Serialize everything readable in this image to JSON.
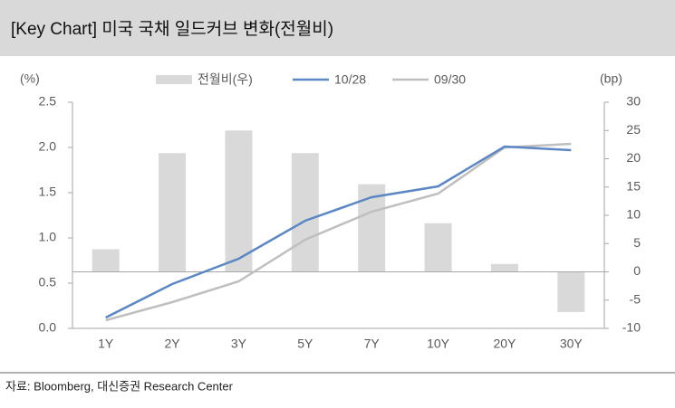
{
  "chart_data": {
    "type": "combo",
    "title": "[Key Chart] 미국 국채 일드커브 변화(전월비)",
    "y_label": "(%)",
    "y2_label": "(bp)",
    "source": "자료: Bloomberg, 대신증권 Research Center",
    "categories": [
      "1Y",
      "2Y",
      "3Y",
      "5Y",
      "7Y",
      "10Y",
      "20Y",
      "30Y"
    ],
    "series": [
      {
        "name": "전월비(우)",
        "type": "bar",
        "axis": "y2",
        "color": "#d9d9d9",
        "values": [
          4,
          21,
          25,
          21,
          15.5,
          8.6,
          1.4,
          -7.1
        ]
      },
      {
        "name": "10/28",
        "type": "line",
        "color": "#5b87c5",
        "values": [
          0.12,
          0.49,
          0.77,
          1.19,
          1.45,
          1.57,
          2.01,
          1.97
        ]
      },
      {
        "name": "09/30",
        "type": "line",
        "color": "#bfbfbf",
        "values": [
          0.09,
          0.29,
          0.52,
          0.98,
          1.29,
          1.49,
          2.0,
          2.04
        ]
      }
    ],
    "ylim": [
      0,
      2.5
    ],
    "yticks": [
      {
        "value": 0,
        "label": "0.0"
      },
      0.5,
      {
        "value": 1,
        "label": "1.0"
      },
      1.5,
      {
        "value": 2,
        "label": "2.0"
      },
      2.5
    ],
    "y2lim": [
      -10,
      30
    ],
    "y2ticks": [
      -10,
      -5,
      0,
      5,
      10,
      15,
      20,
      25,
      30
    ],
    "grid": false
  }
}
